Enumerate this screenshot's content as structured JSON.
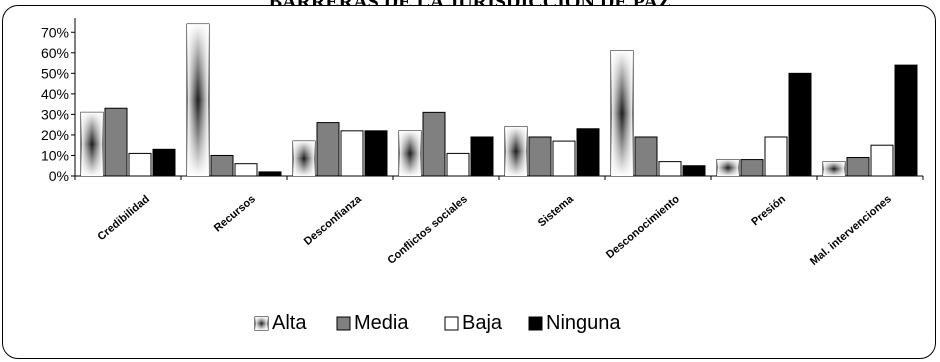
{
  "chart_data": {
    "type": "bar",
    "title": "BARRERAS DE LA JURISDICCIÓN DE PAZ",
    "xlabel": "",
    "ylabel": "",
    "ylim": [
      0,
      0.75
    ],
    "yticks": [
      "0%",
      "10%",
      "20%",
      "30%",
      "40%",
      "50%",
      "60%",
      "70%"
    ],
    "categories": [
      "Credibilidad",
      "Recursos",
      "Desconfianza",
      "Conflictos sociales",
      "Sistema",
      "Desconocimiento",
      "Presión",
      "Mal. intervenciones"
    ],
    "series": [
      {
        "name": "Alta",
        "values": [
          0.31,
          0.74,
          0.17,
          0.22,
          0.24,
          0.61,
          0.08,
          0.07
        ]
      },
      {
        "name": "Media",
        "values": [
          0.33,
          0.1,
          0.26,
          0.31,
          0.19,
          0.19,
          0.08,
          0.09
        ]
      },
      {
        "name": "Baja",
        "values": [
          0.11,
          0.06,
          0.22,
          0.11,
          0.17,
          0.07,
          0.19,
          0.15
        ]
      },
      {
        "name": "Ninguna",
        "values": [
          0.13,
          0.02,
          0.22,
          0.19,
          0.23,
          0.05,
          0.5,
          0.54
        ]
      }
    ],
    "grid": true,
    "legend": "bottom"
  }
}
